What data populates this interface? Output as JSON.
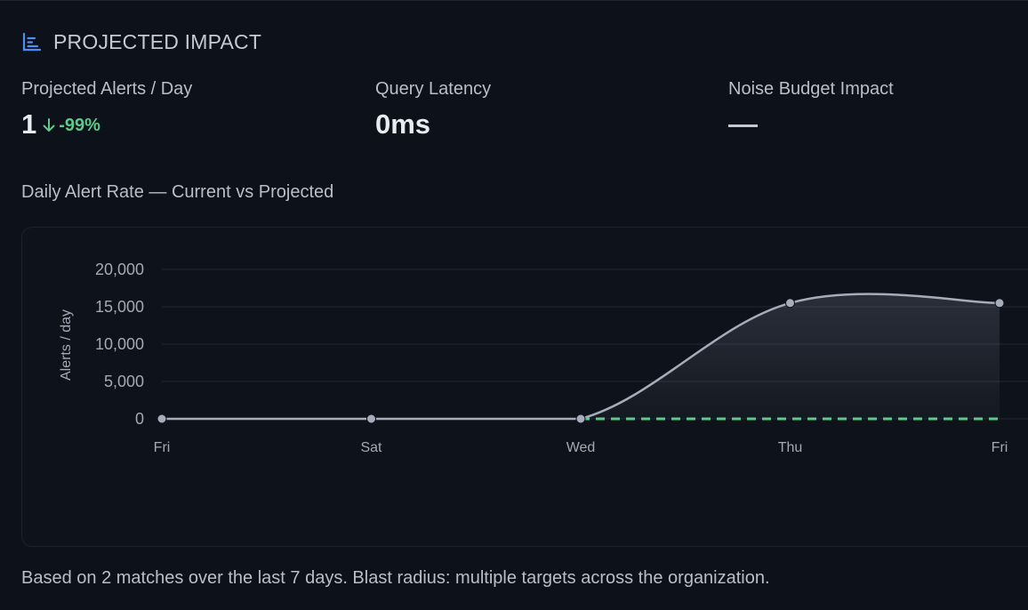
{
  "header": {
    "title": "PROJECTED IMPACT",
    "icon": "bar-chart-icon"
  },
  "metrics": {
    "alerts": {
      "label": "Projected Alerts / Day",
      "value": "1",
      "delta": "-99%",
      "delta_icon": "arrow-down-icon"
    },
    "latency": {
      "label": "Query Latency",
      "value": "0ms"
    },
    "noise": {
      "label": "Noise Budget Impact",
      "value": "—"
    }
  },
  "colors": {
    "accent": "#4f8ef7",
    "positive": "#5fc98c",
    "current_line": "#a6adba",
    "projected_line": "#5fc98c"
  },
  "chart_title": "Daily Alert Rate — Current vs Projected",
  "chart_data": {
    "type": "line",
    "categories": [
      "Fri",
      "Sat",
      "Wed",
      "Thu",
      "Fri"
    ],
    "ylabel": "Alerts / day",
    "ylim": [
      0,
      20000
    ],
    "yticks": [
      0,
      5000,
      10000,
      15000,
      20000
    ],
    "ytick_labels": [
      "0",
      "5,000",
      "10,000",
      "15,000",
      "20,000"
    ],
    "grid": true,
    "series": [
      {
        "values": [
          0,
          0,
          0,
          15500,
          15500
        ],
        "style": "solid-filled"
      },
      {
        "values": [
          null,
          null,
          0,
          0,
          0
        ],
        "style": "dashed"
      }
    ]
  },
  "footer": "Based on 2 matches over the last 7 days. Blast radius: multiple targets across the organization."
}
